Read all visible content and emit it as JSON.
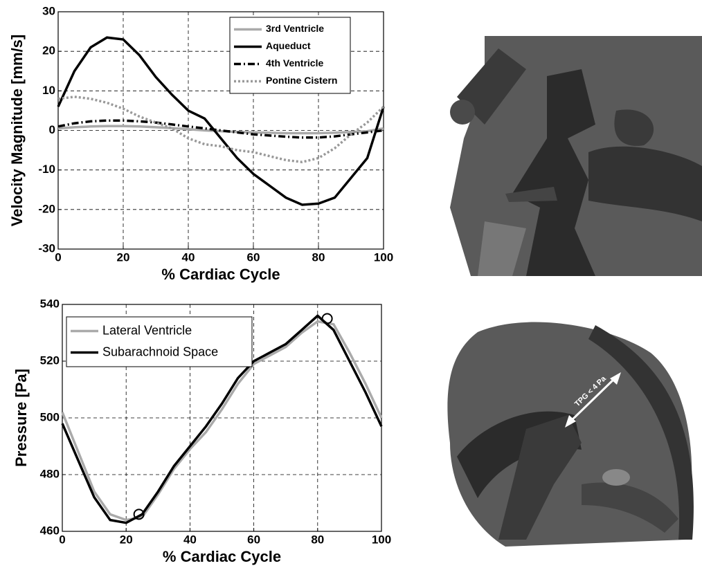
{
  "chart_data": [
    {
      "type": "line",
      "xlabel": "% Cardiac Cycle",
      "ylabel": "Velocity Magnitude [mm/s]",
      "x": [
        0,
        5,
        10,
        15,
        20,
        25,
        30,
        35,
        40,
        45,
        50,
        55,
        60,
        65,
        70,
        75,
        80,
        85,
        90,
        95,
        100
      ],
      "xlim": [
        0,
        100
      ],
      "xticks": [
        0,
        20,
        40,
        60,
        80,
        100
      ],
      "ylim": [
        -30,
        30
      ],
      "yticks": [
        -30,
        -20,
        -10,
        0,
        10,
        20,
        30
      ],
      "grid": true,
      "legend": "upper-right",
      "series": [
        {
          "name": "3rd Ventricle",
          "color": "#aaaaaa",
          "line_style": "solid",
          "values": [
            0.5,
            0.8,
            1,
            1.1,
            1.1,
            1,
            0.8,
            0.6,
            0.3,
            0,
            -0.2,
            -0.4,
            -0.5,
            -0.6,
            -0.7,
            -0.7,
            -0.7,
            -0.6,
            -0.4,
            -0.2,
            0.5
          ]
        },
        {
          "name": "Aqueduct",
          "color": "#000000",
          "line_style": "solid",
          "values": [
            6,
            15,
            21,
            23.5,
            23,
            19,
            13.5,
            9,
            5,
            3,
            -2,
            -7,
            -11,
            -14,
            -17,
            -18.8,
            -18.5,
            -17,
            -12,
            -7,
            6
          ]
        },
        {
          "name": "4th Ventricle",
          "color": "#000000",
          "line_style": "dashdot",
          "values": [
            1,
            1.8,
            2.3,
            2.5,
            2.5,
            2.3,
            2,
            1.5,
            1,
            0.5,
            0,
            -0.5,
            -1,
            -1.3,
            -1.6,
            -1.8,
            -1.8,
            -1.5,
            -1,
            -0.5,
            0
          ]
        },
        {
          "name": "Pontine Cistern",
          "color": "#999999",
          "line_style": "dotted",
          "values": [
            8,
            8.5,
            8,
            7,
            5.5,
            3.5,
            2,
            0.5,
            -2,
            -3.5,
            -4,
            -5,
            -5.5,
            -6.5,
            -7.5,
            -8,
            -7,
            -4.5,
            -1,
            2,
            6
          ]
        }
      ]
    },
    {
      "type": "line",
      "xlabel": "% Cardiac Cycle",
      "ylabel": "Pressure [Pa]",
      "x": [
        0,
        5,
        10,
        15,
        20,
        25,
        30,
        35,
        40,
        45,
        50,
        55,
        60,
        65,
        70,
        75,
        80,
        85,
        90,
        95,
        100
      ],
      "xlim": [
        0,
        100
      ],
      "xticks": [
        0,
        20,
        40,
        60,
        80,
        100
      ],
      "ylim": [
        460,
        540
      ],
      "yticks": [
        460,
        480,
        500,
        520,
        540
      ],
      "grid": true,
      "legend": "upper-left",
      "series": [
        {
          "name": "Lateral Ventricle",
          "color": "#aaaaaa",
          "line_style": "solid",
          "values": [
            502,
            488,
            474,
            466,
            464,
            465,
            473,
            482,
            489,
            495,
            503,
            512,
            519,
            522,
            525,
            530,
            534,
            533,
            523,
            512,
            500
          ]
        },
        {
          "name": "Subarachnoid Space",
          "color": "#000000",
          "line_style": "solid",
          "values": [
            498,
            485,
            472,
            464,
            463,
            466,
            474,
            483,
            490,
            497,
            505,
            514,
            520,
            523,
            526,
            531,
            536,
            531,
            520,
            509,
            497
          ]
        }
      ],
      "markers": {
        "x": [
          24,
          83
        ],
        "y": [
          466,
          535
        ]
      }
    }
  ],
  "figure_annotation": "TPG < 4 Pa"
}
